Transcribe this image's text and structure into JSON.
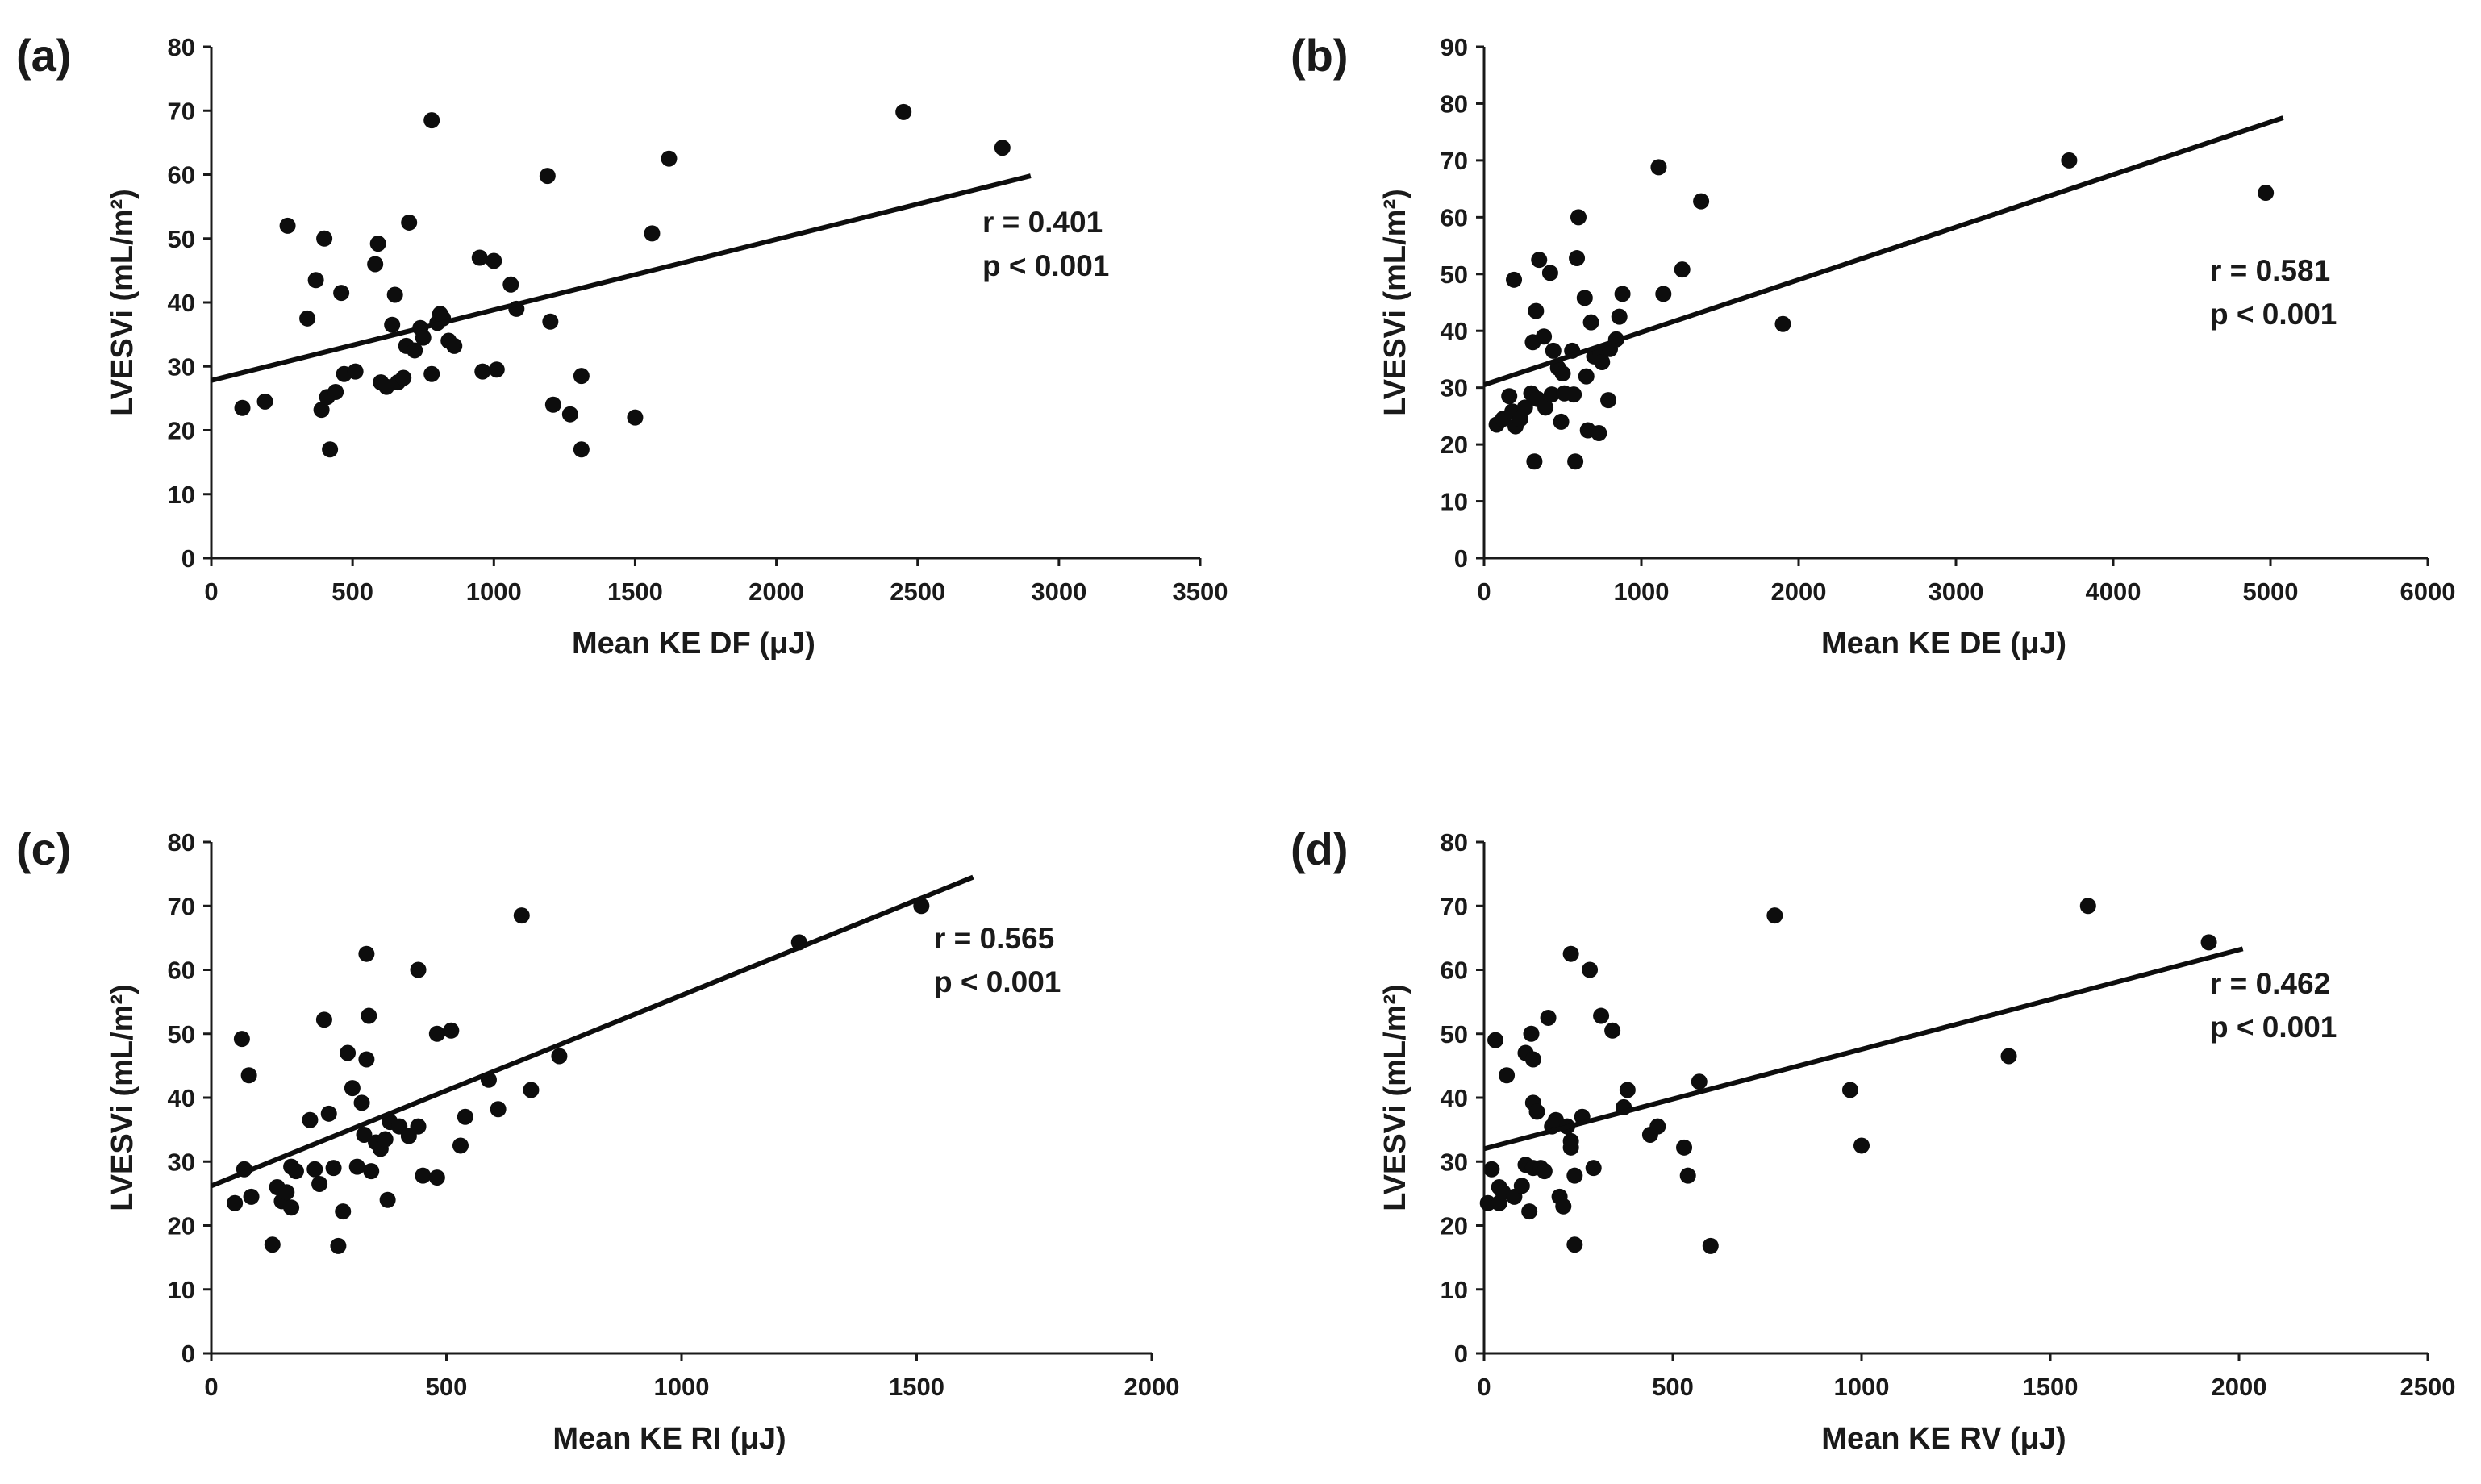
{
  "chart_data": [
    {
      "type": "scatter",
      "panel_label": "(a)",
      "xlabel": "Mean KE DF (μJ)",
      "ylabel": "LVESVi (mL/m²)",
      "xlim": [
        0,
        3500
      ],
      "ylim": [
        0,
        80
      ],
      "xticks": [
        0,
        500,
        1000,
        1500,
        2000,
        2500,
        3000,
        3500
      ],
      "yticks": [
        0,
        10,
        20,
        30,
        40,
        50,
        60,
        70,
        80
      ],
      "trendline": {
        "x": [
          0,
          2900
        ],
        "y": [
          27.8,
          59.8
        ]
      },
      "annotation": {
        "r": "r = 0.401",
        "p": "p < 0.001",
        "position": "right"
      },
      "points": [
        [
          110,
          23.5
        ],
        [
          190,
          24.5
        ],
        [
          270,
          52
        ],
        [
          340,
          37.5
        ],
        [
          370,
          43.5
        ],
        [
          390,
          23.2
        ],
        [
          400,
          50
        ],
        [
          410,
          25.2
        ],
        [
          420,
          17
        ],
        [
          440,
          26
        ],
        [
          460,
          41.5
        ],
        [
          470,
          28.8
        ],
        [
          510,
          29.2
        ],
        [
          580,
          46
        ],
        [
          590,
          49.2
        ],
        [
          600,
          27.5
        ],
        [
          620,
          26.8
        ],
        [
          640,
          36.5
        ],
        [
          650,
          41.2
        ],
        [
          660,
          27.5
        ],
        [
          680,
          28.2
        ],
        [
          690,
          33.2
        ],
        [
          700,
          52.5
        ],
        [
          720,
          32.5
        ],
        [
          740,
          36
        ],
        [
          750,
          34.5
        ],
        [
          780,
          68.5
        ],
        [
          780,
          28.8
        ],
        [
          800,
          36.8
        ],
        [
          810,
          38.2
        ],
        [
          820,
          37.5
        ],
        [
          840,
          34
        ],
        [
          860,
          33.2
        ],
        [
          950,
          47
        ],
        [
          960,
          29.2
        ],
        [
          1000,
          46.5
        ],
        [
          1010,
          29.5
        ],
        [
          1060,
          42.8
        ],
        [
          1080,
          39
        ],
        [
          1190,
          59.8
        ],
        [
          1200,
          37
        ],
        [
          1210,
          24
        ],
        [
          1270,
          22.5
        ],
        [
          1310,
          28.5
        ],
        [
          1310,
          17
        ],
        [
          1500,
          22
        ],
        [
          1560,
          50.8
        ],
        [
          1620,
          62.5
        ],
        [
          2450,
          69.8
        ],
        [
          2800,
          64.2
        ]
      ]
    },
    {
      "type": "scatter",
      "panel_label": "(b)",
      "xlabel": "Mean KE DE (μJ)",
      "ylabel": "LVESVi (mL/m²)",
      "xlim": [
        0,
        6000
      ],
      "ylim": [
        0,
        90
      ],
      "xticks": [
        0,
        1000,
        2000,
        3000,
        4000,
        5000,
        6000
      ],
      "yticks": [
        0,
        10,
        20,
        30,
        40,
        50,
        60,
        70,
        80,
        90
      ],
      "trendline": {
        "x": [
          0,
          5080
        ],
        "y": [
          30.5,
          77.5
        ]
      },
      "annotation": {
        "r": "r = 0.581",
        "p": "p < 0.001",
        "position": "right"
      },
      "points": [
        [
          80,
          23.5
        ],
        [
          120,
          24.5
        ],
        [
          160,
          28.5
        ],
        [
          180,
          25.8
        ],
        [
          190,
          49
        ],
        [
          200,
          23.2
        ],
        [
          230,
          24.5
        ],
        [
          260,
          26.5
        ],
        [
          300,
          29
        ],
        [
          310,
          38
        ],
        [
          320,
          17
        ],
        [
          330,
          43.5
        ],
        [
          340,
          28
        ],
        [
          350,
          52.5
        ],
        [
          380,
          39
        ],
        [
          390,
          26.5
        ],
        [
          420,
          50.2
        ],
        [
          430,
          28.8
        ],
        [
          440,
          36.5
        ],
        [
          470,
          33.5
        ],
        [
          490,
          24
        ],
        [
          500,
          32.5
        ],
        [
          510,
          29
        ],
        [
          560,
          36.5
        ],
        [
          570,
          28.8
        ],
        [
          580,
          17
        ],
        [
          590,
          52.8
        ],
        [
          600,
          60
        ],
        [
          640,
          45.8
        ],
        [
          650,
          32
        ],
        [
          660,
          22.5
        ],
        [
          680,
          41.5
        ],
        [
          700,
          35.5
        ],
        [
          730,
          22
        ],
        [
          740,
          36
        ],
        [
          750,
          34.5
        ],
        [
          790,
          27.8
        ],
        [
          800,
          36.8
        ],
        [
          840,
          38.5
        ],
        [
          860,
          42.5
        ],
        [
          880,
          46.5
        ],
        [
          1110,
          68.8
        ],
        [
          1140,
          46.5
        ],
        [
          1260,
          50.8
        ],
        [
          1380,
          62.8
        ],
        [
          1900,
          41.2
        ],
        [
          3720,
          70
        ],
        [
          4970,
          64.3
        ]
      ]
    },
    {
      "type": "scatter",
      "panel_label": "(c)",
      "xlabel": "Mean KE RI (μJ)",
      "ylabel": "LVESVi (mL/m²)",
      "xlim": [
        0,
        2000
      ],
      "ylim": [
        0,
        80
      ],
      "xticks": [
        0,
        500,
        1000,
        1500,
        2000
      ],
      "yticks": [
        0,
        10,
        20,
        30,
        40,
        50,
        60,
        70,
        80
      ],
      "trendline": {
        "x": [
          0,
          1620
        ],
        "y": [
          26.2,
          74.5
        ]
      },
      "annotation": {
        "r": "r = 0.565",
        "p": "p < 0.001",
        "position": "right"
      },
      "points": [
        [
          50,
          23.5
        ],
        [
          65,
          49.2
        ],
        [
          70,
          28.8
        ],
        [
          80,
          43.5
        ],
        [
          85,
          24.5
        ],
        [
          130,
          17
        ],
        [
          140,
          26
        ],
        [
          150,
          23.8
        ],
        [
          160,
          25.2
        ],
        [
          170,
          29.2
        ],
        [
          170,
          22.8
        ],
        [
          180,
          28.5
        ],
        [
          210,
          36.5
        ],
        [
          220,
          28.8
        ],
        [
          230,
          26.5
        ],
        [
          240,
          52.2
        ],
        [
          250,
          37.5
        ],
        [
          260,
          29
        ],
        [
          270,
          16.8
        ],
        [
          280,
          22.2
        ],
        [
          290,
          47
        ],
        [
          300,
          41.5
        ],
        [
          310,
          29.2
        ],
        [
          320,
          39.2
        ],
        [
          325,
          34.2
        ],
        [
          330,
          62.5
        ],
        [
          330,
          46
        ],
        [
          335,
          52.8
        ],
        [
          340,
          28.5
        ],
        [
          350,
          33
        ],
        [
          360,
          32
        ],
        [
          370,
          33.5
        ],
        [
          375,
          24
        ],
        [
          380,
          36.2
        ],
        [
          400,
          35.5
        ],
        [
          420,
          34
        ],
        [
          440,
          60
        ],
        [
          440,
          35.5
        ],
        [
          450,
          27.8
        ],
        [
          480,
          27.5
        ],
        [
          480,
          50
        ],
        [
          510,
          50.5
        ],
        [
          530,
          32.5
        ],
        [
          540,
          37
        ],
        [
          590,
          42.8
        ],
        [
          610,
          38.2
        ],
        [
          660,
          68.5
        ],
        [
          680,
          41.2
        ],
        [
          740,
          46.5
        ],
        [
          1250,
          64.3
        ],
        [
          1510,
          70
        ]
      ]
    },
    {
      "type": "scatter",
      "panel_label": "(d)",
      "xlabel": "Mean KE RV (μJ)",
      "ylabel": "LVESVi (mL/m²)",
      "xlim": [
        0,
        2500
      ],
      "ylim": [
        0,
        80
      ],
      "xticks": [
        0,
        500,
        1000,
        1500,
        2000,
        2500
      ],
      "yticks": [
        0,
        10,
        20,
        30,
        40,
        50,
        60,
        70,
        80
      ],
      "trendline": {
        "x": [
          0,
          2010
        ],
        "y": [
          32,
          63.3
        ]
      },
      "annotation": {
        "r": "r = 0.462",
        "p": "p < 0.001",
        "position": "right"
      },
      "points": [
        [
          10,
          23.5
        ],
        [
          20,
          28.8
        ],
        [
          30,
          49
        ],
        [
          40,
          26
        ],
        [
          40,
          23.5
        ],
        [
          50,
          25.2
        ],
        [
          60,
          43.5
        ],
        [
          80,
          24.5
        ],
        [
          100,
          26.2
        ],
        [
          110,
          29.5
        ],
        [
          110,
          47
        ],
        [
          120,
          22.2
        ],
        [
          125,
          50
        ],
        [
          130,
          29
        ],
        [
          130,
          46
        ],
        [
          130,
          39.2
        ],
        [
          140,
          37.8
        ],
        [
          150,
          29
        ],
        [
          160,
          28.5
        ],
        [
          170,
          52.5
        ],
        [
          180,
          35.5
        ],
        [
          190,
          36.5
        ],
        [
          200,
          24.5
        ],
        [
          210,
          23
        ],
        [
          220,
          35.5
        ],
        [
          230,
          62.5
        ],
        [
          230,
          33.2
        ],
        [
          230,
          32.2
        ],
        [
          240,
          27.8
        ],
        [
          240,
          17
        ],
        [
          260,
          37
        ],
        [
          280,
          60
        ],
        [
          290,
          29
        ],
        [
          310,
          52.8
        ],
        [
          340,
          50.5
        ],
        [
          370,
          38.5
        ],
        [
          380,
          41.2
        ],
        [
          440,
          34.2
        ],
        [
          460,
          35.5
        ],
        [
          530,
          32.2
        ],
        [
          540,
          27.8
        ],
        [
          570,
          42.5
        ],
        [
          600,
          16.8
        ],
        [
          770,
          68.5
        ],
        [
          970,
          41.2
        ],
        [
          1000,
          32.5
        ],
        [
          1390,
          46.5
        ],
        [
          1600,
          70
        ],
        [
          1920,
          64.3
        ]
      ]
    }
  ]
}
